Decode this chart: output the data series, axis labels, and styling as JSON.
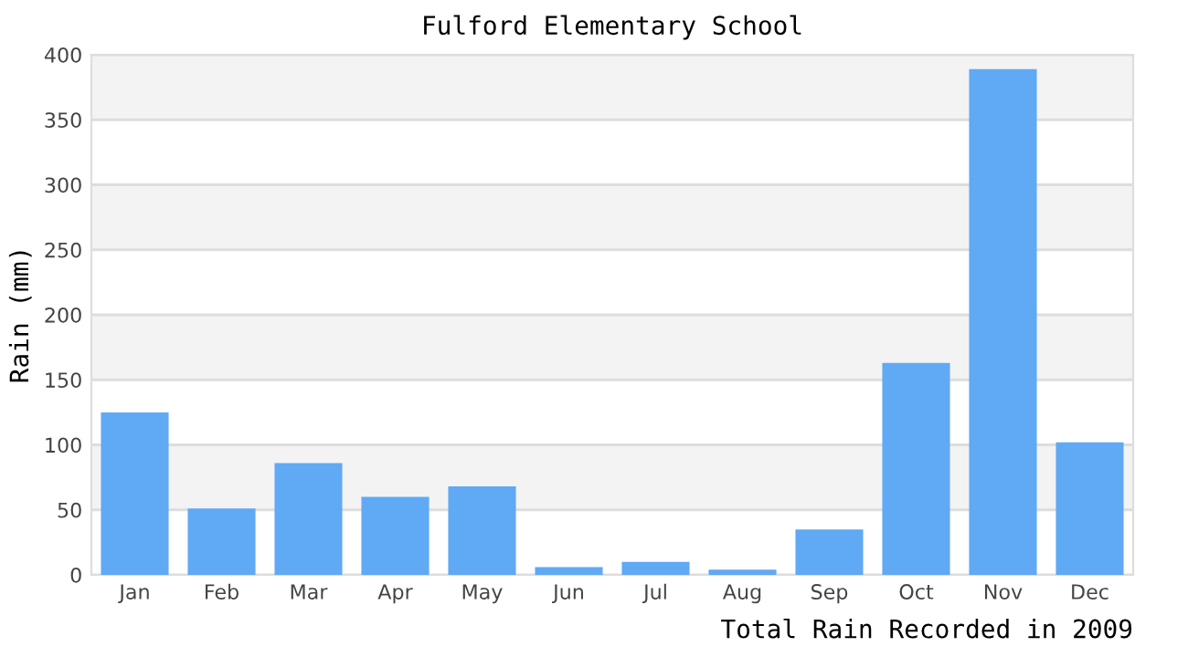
{
  "chart_data": {
    "type": "bar",
    "title": "Fulford Elementary School",
    "xlabel": "Total Rain Recorded in 2009",
    "ylabel": "Rain (mm)",
    "categories": [
      "Jan",
      "Feb",
      "Mar",
      "Apr",
      "May",
      "Jun",
      "Jul",
      "Aug",
      "Sep",
      "Oct",
      "Nov",
      "Dec"
    ],
    "series": [
      {
        "color": "#60a9f4",
        "values": [
          125,
          51,
          86,
          60,
          68,
          6,
          10,
          4,
          35,
          163,
          389,
          102
        ]
      }
    ],
    "ylim": [
      0,
      400
    ],
    "yticks": [
      0,
      50,
      100,
      150,
      200,
      250,
      300,
      350,
      400
    ],
    "grid": "y",
    "legend": false
  }
}
